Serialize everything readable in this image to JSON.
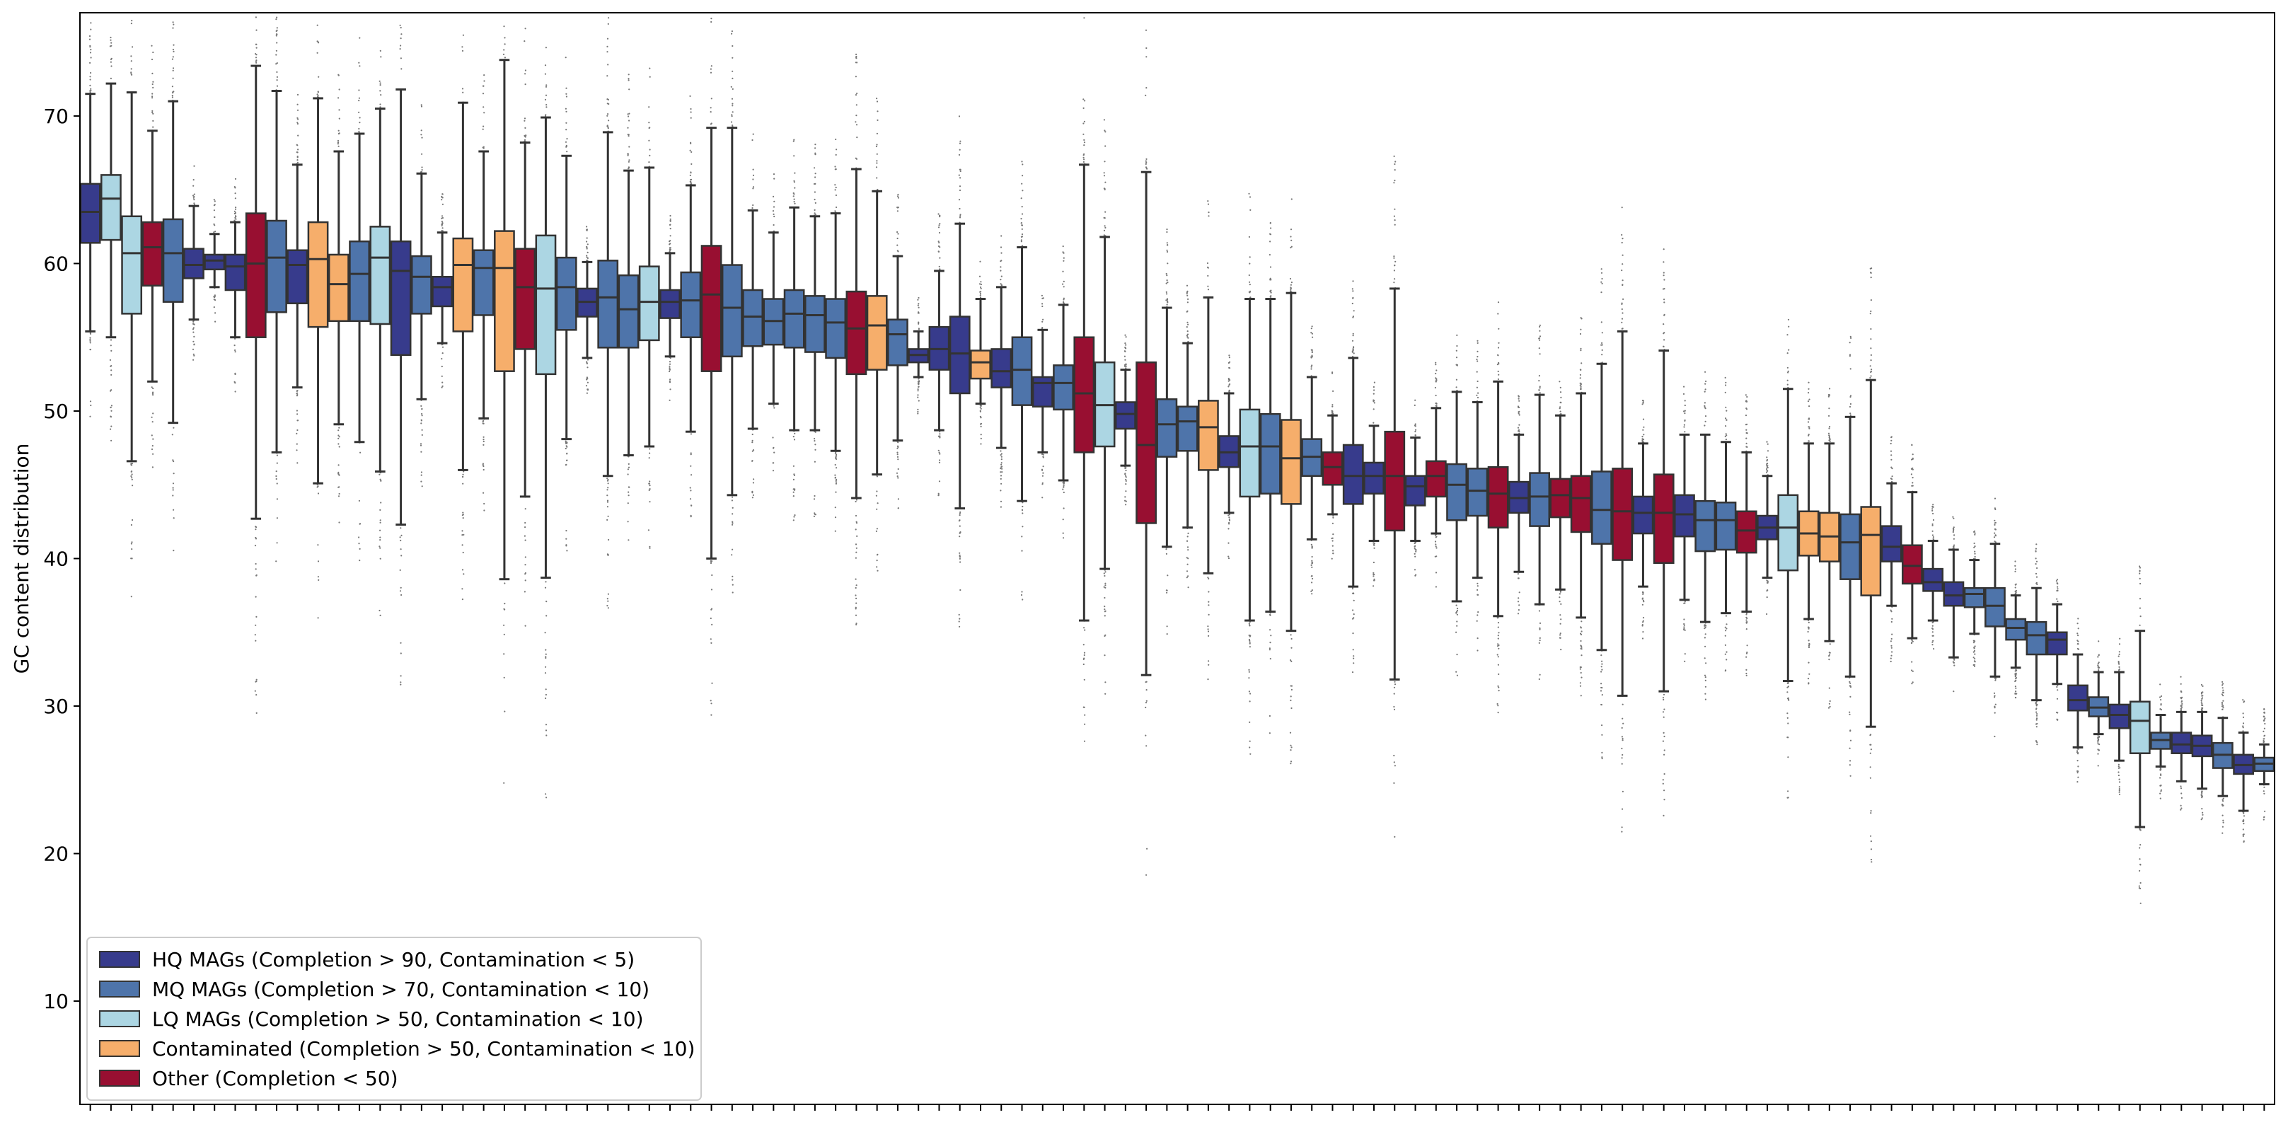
{
  "chart_data": {
    "type": "box",
    "title": "",
    "xlabel": "",
    "ylabel": "GC content distribution",
    "ylim": [
      3,
      77
    ],
    "yticks": [
      10,
      20,
      30,
      40,
      50,
      60,
      70
    ],
    "xticklabels": "none",
    "grid": false,
    "legend_position": "bottom-left",
    "category_colors": {
      "HQ": "#373b8c",
      "MQ": "#4e74aa",
      "LQ": "#acd6e3",
      "CT": "#f6ae6b",
      "OT": "#980f31"
    },
    "legend": [
      {
        "key": "HQ",
        "label": "HQ MAGs (Completion > 90, Contamination < 5)"
      },
      {
        "key": "MQ",
        "label": "MQ MAGs (Completion > 70, Contamination < 10)"
      },
      {
        "key": "LQ",
        "label": "LQ MAGs (Completion > 50, Contamination < 10)"
      },
      {
        "key": "CT",
        "label": "Contaminated (Completion > 50, Contamination < 10)"
      },
      {
        "key": "OT",
        "label": "Other (Completion < 50)"
      }
    ],
    "boxes": [
      {
        "c": "HQ",
        "whislo": 55.4,
        "q1": 61.4,
        "med": 63.5,
        "q3": 65.4,
        "whishi": 71.5
      },
      {
        "c": "LQ",
        "whislo": 55.0,
        "q1": 61.6,
        "med": 64.4,
        "q3": 66.0,
        "whishi": 72.2
      },
      {
        "c": "LQ",
        "whislo": 46.6,
        "q1": 56.6,
        "med": 60.7,
        "q3": 63.2,
        "whishi": 71.6
      },
      {
        "c": "OT",
        "whislo": 52.0,
        "q1": 58.5,
        "med": 61.1,
        "q3": 62.8,
        "whishi": 69.0
      },
      {
        "c": "MQ",
        "whislo": 49.2,
        "q1": 57.4,
        "med": 60.7,
        "q3": 63.0,
        "whishi": 71.0
      },
      {
        "c": "HQ",
        "whislo": 56.2,
        "q1": 59.0,
        "med": 59.9,
        "q3": 61.0,
        "whishi": 63.9
      },
      {
        "c": "HQ",
        "whislo": 58.4,
        "q1": 59.6,
        "med": 60.2,
        "q3": 60.6,
        "whishi": 62.0
      },
      {
        "c": "HQ",
        "whislo": 55.0,
        "q1": 58.2,
        "med": 59.8,
        "q3": 60.6,
        "whishi": 62.8
      },
      {
        "c": "OT",
        "whislo": 42.7,
        "q1": 55.0,
        "med": 60.0,
        "q3": 63.4,
        "whishi": 73.4
      },
      {
        "c": "MQ",
        "whislo": 47.2,
        "q1": 56.7,
        "med": 60.4,
        "q3": 62.9,
        "whishi": 71.7
      },
      {
        "c": "HQ",
        "whislo": 51.6,
        "q1": 57.3,
        "med": 59.9,
        "q3": 60.9,
        "whishi": 66.7
      },
      {
        "c": "CT",
        "whislo": 45.1,
        "q1": 55.7,
        "med": 60.3,
        "q3": 62.8,
        "whishi": 71.2
      },
      {
        "c": "CT",
        "whislo": 49.1,
        "q1": 56.1,
        "med": 58.6,
        "q3": 60.6,
        "whishi": 67.6
      },
      {
        "c": "MQ",
        "whislo": 47.9,
        "q1": 56.1,
        "med": 59.3,
        "q3": 61.5,
        "whishi": 68.8
      },
      {
        "c": "LQ",
        "whislo": 45.9,
        "q1": 55.9,
        "med": 60.4,
        "q3": 62.5,
        "whishi": 70.5
      },
      {
        "c": "HQ",
        "whislo": 42.3,
        "q1": 53.8,
        "med": 59.5,
        "q3": 61.5,
        "whishi": 71.8
      },
      {
        "c": "MQ",
        "whislo": 50.8,
        "q1": 56.6,
        "med": 59.1,
        "q3": 60.5,
        "whishi": 66.1
      },
      {
        "c": "HQ",
        "whislo": 54.6,
        "q1": 57.1,
        "med": 58.4,
        "q3": 59.1,
        "whishi": 62.1
      },
      {
        "c": "CT",
        "whislo": 46.0,
        "q1": 55.4,
        "med": 59.9,
        "q3": 61.7,
        "whishi": 70.9
      },
      {
        "c": "MQ",
        "whislo": 49.5,
        "q1": 56.5,
        "med": 59.7,
        "q3": 60.9,
        "whishi": 67.6
      },
      {
        "c": "CT",
        "whislo": 38.6,
        "q1": 52.7,
        "med": 59.7,
        "q3": 62.2,
        "whishi": 73.8
      },
      {
        "c": "OT",
        "whislo": 44.2,
        "q1": 54.2,
        "med": 58.4,
        "q3": 61.0,
        "whishi": 68.2
      },
      {
        "c": "LQ",
        "whislo": 38.7,
        "q1": 52.5,
        "med": 58.3,
        "q3": 61.9,
        "whishi": 69.9
      },
      {
        "c": "MQ",
        "whislo": 48.1,
        "q1": 55.5,
        "med": 58.4,
        "q3": 60.4,
        "whishi": 67.3
      },
      {
        "c": "HQ",
        "whislo": 53.6,
        "q1": 56.4,
        "med": 57.4,
        "q3": 58.3,
        "whishi": 60.1
      },
      {
        "c": "MQ",
        "whislo": 45.6,
        "q1": 54.3,
        "med": 57.7,
        "q3": 60.2,
        "whishi": 68.9
      },
      {
        "c": "MQ",
        "whislo": 47.0,
        "q1": 54.3,
        "med": 56.9,
        "q3": 59.2,
        "whishi": 66.3
      },
      {
        "c": "LQ",
        "whislo": 47.6,
        "q1": 54.8,
        "med": 57.4,
        "q3": 59.8,
        "whishi": 66.5
      },
      {
        "c": "HQ",
        "whislo": 53.7,
        "q1": 56.3,
        "med": 57.4,
        "q3": 58.2,
        "whishi": 60.7
      },
      {
        "c": "MQ",
        "whislo": 48.6,
        "q1": 55.0,
        "med": 57.5,
        "q3": 59.4,
        "whishi": 65.3
      },
      {
        "c": "OT",
        "whislo": 40.0,
        "q1": 52.7,
        "med": 57.9,
        "q3": 61.2,
        "whishi": 69.2
      },
      {
        "c": "MQ",
        "whislo": 44.3,
        "q1": 53.7,
        "med": 57.0,
        "q3": 59.9,
        "whishi": 69.2
      },
      {
        "c": "MQ",
        "whislo": 48.8,
        "q1": 54.4,
        "med": 56.4,
        "q3": 58.2,
        "whishi": 63.6
      },
      {
        "c": "MQ",
        "whislo": 50.5,
        "q1": 54.5,
        "med": 56.1,
        "q3": 57.6,
        "whishi": 62.1
      },
      {
        "c": "MQ",
        "whislo": 48.7,
        "q1": 54.3,
        "med": 56.6,
        "q3": 58.2,
        "whishi": 63.8
      },
      {
        "c": "MQ",
        "whislo": 48.7,
        "q1": 54.0,
        "med": 56.5,
        "q3": 57.8,
        "whishi": 63.2
      },
      {
        "c": "MQ",
        "whislo": 47.3,
        "q1": 53.6,
        "med": 56.0,
        "q3": 57.6,
        "whishi": 63.4
      },
      {
        "c": "OT",
        "whislo": 44.1,
        "q1": 52.5,
        "med": 55.6,
        "q3": 58.1,
        "whishi": 66.4
      },
      {
        "c": "CT",
        "whislo": 45.7,
        "q1": 52.8,
        "med": 55.8,
        "q3": 57.8,
        "whishi": 64.9
      },
      {
        "c": "MQ",
        "whislo": 48.0,
        "q1": 53.1,
        "med": 55.2,
        "q3": 56.2,
        "whishi": 60.5
      },
      {
        "c": "HQ",
        "whislo": 52.3,
        "q1": 53.3,
        "med": 53.8,
        "q3": 54.2,
        "whishi": 55.4
      },
      {
        "c": "HQ",
        "whislo": 48.7,
        "q1": 52.8,
        "med": 54.2,
        "q3": 55.7,
        "whishi": 59.5
      },
      {
        "c": "HQ",
        "whislo": 43.4,
        "q1": 51.2,
        "med": 53.9,
        "q3": 56.4,
        "whishi": 62.7
      },
      {
        "c": "CT",
        "whislo": 50.5,
        "q1": 52.2,
        "med": 53.3,
        "q3": 54.1,
        "whishi": 57.6
      },
      {
        "c": "HQ",
        "whislo": 47.5,
        "q1": 51.6,
        "med": 52.7,
        "q3": 54.2,
        "whishi": 58.4
      },
      {
        "c": "MQ",
        "whislo": 43.9,
        "q1": 50.4,
        "med": 52.8,
        "q3": 55.0,
        "whishi": 61.1
      },
      {
        "c": "HQ",
        "whislo": 47.2,
        "q1": 50.3,
        "med": 51.9,
        "q3": 52.3,
        "whishi": 55.5
      },
      {
        "c": "MQ",
        "whislo": 45.3,
        "q1": 50.1,
        "med": 51.9,
        "q3": 53.1,
        "whishi": 57.2
      },
      {
        "c": "OT",
        "whislo": 35.8,
        "q1": 47.2,
        "med": 51.2,
        "q3": 55.0,
        "whishi": 66.7
      },
      {
        "c": "LQ",
        "whislo": 39.3,
        "q1": 47.6,
        "med": 50.4,
        "q3": 53.3,
        "whishi": 61.8
      },
      {
        "c": "HQ",
        "whislo": 46.3,
        "q1": 48.8,
        "med": 49.8,
        "q3": 50.6,
        "whishi": 52.8
      },
      {
        "c": "OT",
        "whislo": 32.1,
        "q1": 42.4,
        "med": 47.7,
        "q3": 53.3,
        "whishi": 66.2
      },
      {
        "c": "MQ",
        "whislo": 40.8,
        "q1": 46.9,
        "med": 49.1,
        "q3": 50.8,
        "whishi": 57.0
      },
      {
        "c": "MQ",
        "whislo": 42.1,
        "q1": 47.3,
        "med": 49.3,
        "q3": 50.3,
        "whishi": 54.6
      },
      {
        "c": "CT",
        "whislo": 39.0,
        "q1": 46.0,
        "med": 48.9,
        "q3": 50.7,
        "whishi": 57.7
      },
      {
        "c": "HQ",
        "whislo": 43.1,
        "q1": 46.2,
        "med": 47.2,
        "q3": 48.3,
        "whishi": 51.2
      },
      {
        "c": "LQ",
        "whislo": 35.8,
        "q1": 44.2,
        "med": 47.6,
        "q3": 50.1,
        "whishi": 57.6
      },
      {
        "c": "MQ",
        "whislo": 36.4,
        "q1": 44.4,
        "med": 47.6,
        "q3": 49.8,
        "whishi": 57.6
      },
      {
        "c": "CT",
        "whislo": 35.1,
        "q1": 43.7,
        "med": 46.8,
        "q3": 49.4,
        "whishi": 58.0
      },
      {
        "c": "MQ",
        "whislo": 41.3,
        "q1": 45.6,
        "med": 46.9,
        "q3": 48.1,
        "whishi": 52.3
      },
      {
        "c": "OT",
        "whislo": 43.0,
        "q1": 45.0,
        "med": 46.2,
        "q3": 47.2,
        "whishi": 49.7
      },
      {
        "c": "HQ",
        "whislo": 38.1,
        "q1": 43.7,
        "med": 45.6,
        "q3": 47.7,
        "whishi": 53.6
      },
      {
        "c": "HQ",
        "whislo": 41.2,
        "q1": 44.4,
        "med": 45.6,
        "q3": 46.5,
        "whishi": 49.0
      },
      {
        "c": "OT",
        "whislo": 31.8,
        "q1": 41.9,
        "med": 45.6,
        "q3": 48.6,
        "whishi": 58.3
      },
      {
        "c": "HQ",
        "whislo": 41.2,
        "q1": 43.6,
        "med": 44.9,
        "q3": 45.6,
        "whishi": 48.2
      },
      {
        "c": "OT",
        "whislo": 41.7,
        "q1": 44.2,
        "med": 45.6,
        "q3": 46.6,
        "whishi": 50.2
      },
      {
        "c": "MQ",
        "whislo": 37.1,
        "q1": 42.6,
        "med": 45.0,
        "q3": 46.4,
        "whishi": 51.3
      },
      {
        "c": "MQ",
        "whislo": 38.7,
        "q1": 42.9,
        "med": 44.6,
        "q3": 46.1,
        "whishi": 50.6
      },
      {
        "c": "OT",
        "whislo": 36.1,
        "q1": 42.1,
        "med": 44.4,
        "q3": 46.2,
        "whishi": 52.0
      },
      {
        "c": "HQ",
        "whislo": 39.1,
        "q1": 43.1,
        "med": 44.1,
        "q3": 45.2,
        "whishi": 48.4
      },
      {
        "c": "MQ",
        "whislo": 36.9,
        "q1": 42.2,
        "med": 44.2,
        "q3": 45.8,
        "whishi": 51.1
      },
      {
        "c": "OT",
        "whislo": 37.9,
        "q1": 42.8,
        "med": 44.3,
        "q3": 45.4,
        "whishi": 49.7
      },
      {
        "c": "OT",
        "whislo": 36.0,
        "q1": 41.8,
        "med": 44.1,
        "q3": 45.6,
        "whishi": 51.2
      },
      {
        "c": "MQ",
        "whislo": 33.8,
        "q1": 41.0,
        "med": 43.3,
        "q3": 45.9,
        "whishi": 53.2
      },
      {
        "c": "OT",
        "whislo": 30.7,
        "q1": 39.9,
        "med": 43.2,
        "q3": 46.1,
        "whishi": 55.4
      },
      {
        "c": "HQ",
        "whislo": 38.1,
        "q1": 41.7,
        "med": 43.1,
        "q3": 44.2,
        "whishi": 47.8
      },
      {
        "c": "OT",
        "whislo": 31.0,
        "q1": 39.7,
        "med": 43.1,
        "q3": 45.7,
        "whishi": 54.1
      },
      {
        "c": "HQ",
        "whislo": 37.2,
        "q1": 41.5,
        "med": 43.0,
        "q3": 44.3,
        "whishi": 48.4
      },
      {
        "c": "MQ",
        "whislo": 35.7,
        "q1": 40.5,
        "med": 42.6,
        "q3": 43.9,
        "whishi": 48.4
      },
      {
        "c": "MQ",
        "whislo": 36.3,
        "q1": 40.6,
        "med": 42.6,
        "q3": 43.8,
        "whishi": 47.9
      },
      {
        "c": "OT",
        "whislo": 36.4,
        "q1": 40.4,
        "med": 41.9,
        "q3": 43.2,
        "whishi": 47.2
      },
      {
        "c": "HQ",
        "whislo": 38.7,
        "q1": 41.3,
        "med": 42.1,
        "q3": 42.9,
        "whishi": 45.6
      },
      {
        "c": "LQ",
        "whislo": 31.7,
        "q1": 39.2,
        "med": 42.1,
        "q3": 44.3,
        "whishi": 51.5
      },
      {
        "c": "CT",
        "whislo": 35.9,
        "q1": 40.2,
        "med": 41.7,
        "q3": 43.2,
        "whishi": 47.8
      },
      {
        "c": "CT",
        "whislo": 34.4,
        "q1": 39.8,
        "med": 41.5,
        "q3": 43.1,
        "whishi": 47.8
      },
      {
        "c": "MQ",
        "whislo": 32.0,
        "q1": 38.6,
        "med": 41.1,
        "q3": 43.0,
        "whishi": 49.6
      },
      {
        "c": "CT",
        "whislo": 28.6,
        "q1": 37.5,
        "med": 41.6,
        "q3": 43.5,
        "whishi": 52.1
      },
      {
        "c": "HQ",
        "whislo": 36.8,
        "q1": 39.8,
        "med": 40.8,
        "q3": 42.2,
        "whishi": 45.1
      },
      {
        "c": "OT",
        "whislo": 34.6,
        "q1": 38.3,
        "med": 39.5,
        "q3": 40.9,
        "whishi": 44.5
      },
      {
        "c": "HQ",
        "whislo": 35.8,
        "q1": 37.8,
        "med": 38.4,
        "q3": 39.3,
        "whishi": 41.2
      },
      {
        "c": "HQ",
        "whislo": 33.3,
        "q1": 36.8,
        "med": 37.5,
        "q3": 38.4,
        "whishi": 40.6
      },
      {
        "c": "MQ",
        "whislo": 34.9,
        "q1": 36.7,
        "med": 37.6,
        "q3": 38.0,
        "whishi": 39.9
      },
      {
        "c": "MQ",
        "whislo": 32.0,
        "q1": 35.4,
        "med": 36.8,
        "q3": 38.0,
        "whishi": 41.0
      },
      {
        "c": "MQ",
        "whislo": 32.6,
        "q1": 34.5,
        "med": 35.3,
        "q3": 35.9,
        "whishi": 37.5
      },
      {
        "c": "MQ",
        "whislo": 30.4,
        "q1": 33.5,
        "med": 34.8,
        "q3": 35.7,
        "whishi": 38.0
      },
      {
        "c": "HQ",
        "whislo": 31.5,
        "q1": 33.5,
        "med": 34.5,
        "q3": 35.0,
        "whishi": 36.9
      },
      {
        "c": "HQ",
        "whislo": 27.2,
        "q1": 29.7,
        "med": 30.4,
        "q3": 31.4,
        "whishi": 33.5
      },
      {
        "c": "MQ",
        "whislo": 28.1,
        "q1": 29.3,
        "med": 29.9,
        "q3": 30.6,
        "whishi": 32.3
      },
      {
        "c": "HQ",
        "whislo": 26.3,
        "q1": 28.5,
        "med": 29.4,
        "q3": 30.1,
        "whishi": 32.3
      },
      {
        "c": "LQ",
        "whislo": 21.8,
        "q1": 26.8,
        "med": 29.0,
        "q3": 30.3,
        "whishi": 35.1
      },
      {
        "c": "MQ",
        "whislo": 25.9,
        "q1": 27.1,
        "med": 27.7,
        "q3": 28.2,
        "whishi": 29.4
      },
      {
        "c": "HQ",
        "whislo": 24.9,
        "q1": 26.8,
        "med": 27.4,
        "q3": 28.2,
        "whishi": 29.6
      },
      {
        "c": "HQ",
        "whislo": 24.4,
        "q1": 26.6,
        "med": 27.3,
        "q3": 28.0,
        "whishi": 29.6
      },
      {
        "c": "MQ",
        "whislo": 23.9,
        "q1": 25.8,
        "med": 26.7,
        "q3": 27.5,
        "whishi": 29.2
      },
      {
        "c": "HQ",
        "whislo": 22.9,
        "q1": 25.4,
        "med": 26.0,
        "q3": 26.7,
        "whishi": 28.2
      },
      {
        "c": "MQ",
        "whislo": 24.7,
        "q1": 25.6,
        "med": 26.1,
        "q3": 26.5,
        "whishi": 27.4
      }
    ]
  }
}
